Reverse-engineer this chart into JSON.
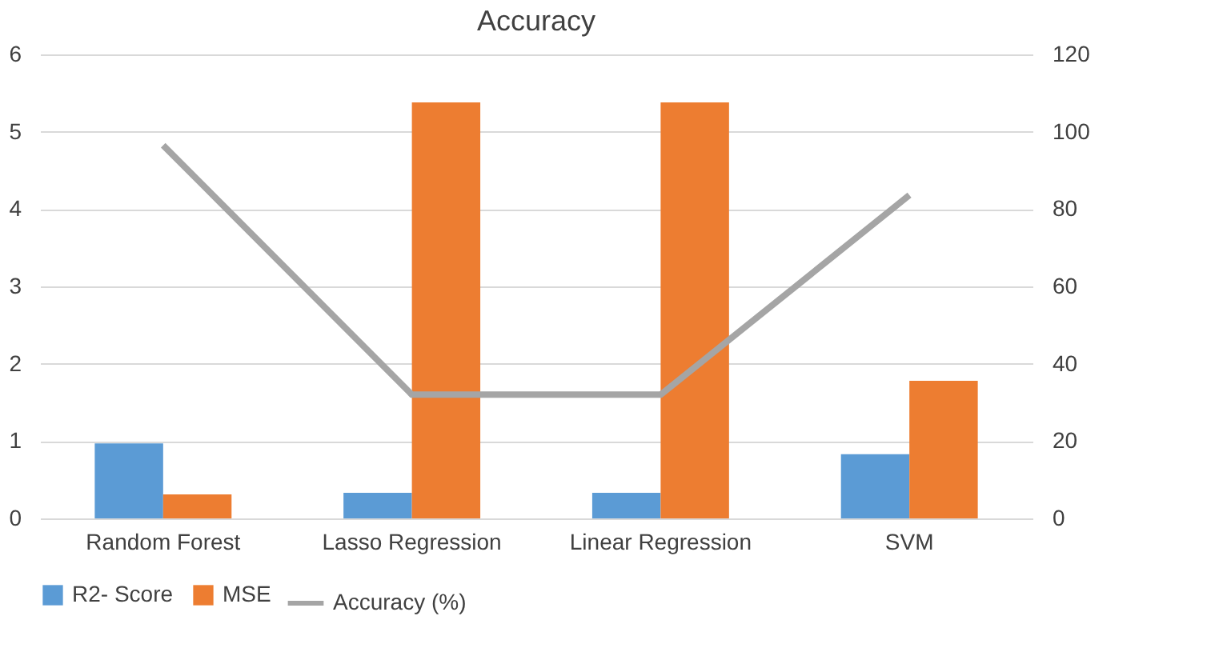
{
  "chart_data": {
    "type": "bar",
    "title": "Accuracy",
    "categories": [
      "Random Forest",
      "Lasso Regression",
      "Linear Regression",
      "SVM"
    ],
    "series": [
      {
        "name": "R2- Score",
        "color": "#5b9bd5",
        "values": [
          0.97,
          0.33,
          0.33,
          0.83
        ]
      },
      {
        "name": "MSE",
        "color": "#ed7d31",
        "values": [
          0.31,
          5.38,
          5.38,
          1.78
        ]
      },
      {
        "name": "Accuracy (%)",
        "color": "#a5a5a5",
        "type": "line",
        "axis": "y2",
        "values": [
          96.5,
          32,
          32,
          83.6
        ]
      }
    ],
    "ylim": [
      0,
      6
    ],
    "yticks": [
      0,
      1,
      2,
      3,
      4,
      5,
      6
    ],
    "y2lim": [
      0,
      120
    ],
    "y2ticks": [
      0,
      20,
      40,
      60,
      80,
      100,
      120
    ],
    "grid": "y",
    "legend": "bottom"
  }
}
